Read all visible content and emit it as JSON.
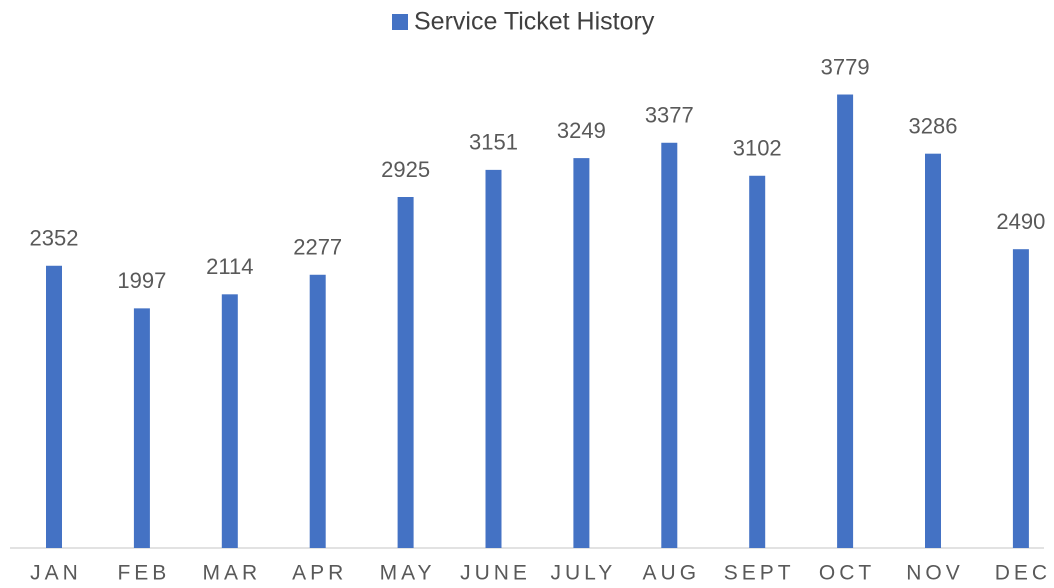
{
  "chart_data": {
    "type": "bar",
    "categories": [
      "JAN",
      "FEB",
      "MAR",
      "APR",
      "MAY",
      "JUNE",
      "JULY",
      "AUG",
      "SEPT",
      "OCT",
      "NOV",
      "DEC"
    ],
    "series": [
      {
        "name": "Service Ticket History",
        "color": "#4472c4",
        "values": [
          2352,
          1997,
          2114,
          2277,
          2925,
          3151,
          3249,
          3377,
          3102,
          3779,
          3286,
          2490
        ]
      }
    ],
    "ylim": [
      0,
      4000
    ],
    "legend": "top",
    "data_labels": true
  }
}
